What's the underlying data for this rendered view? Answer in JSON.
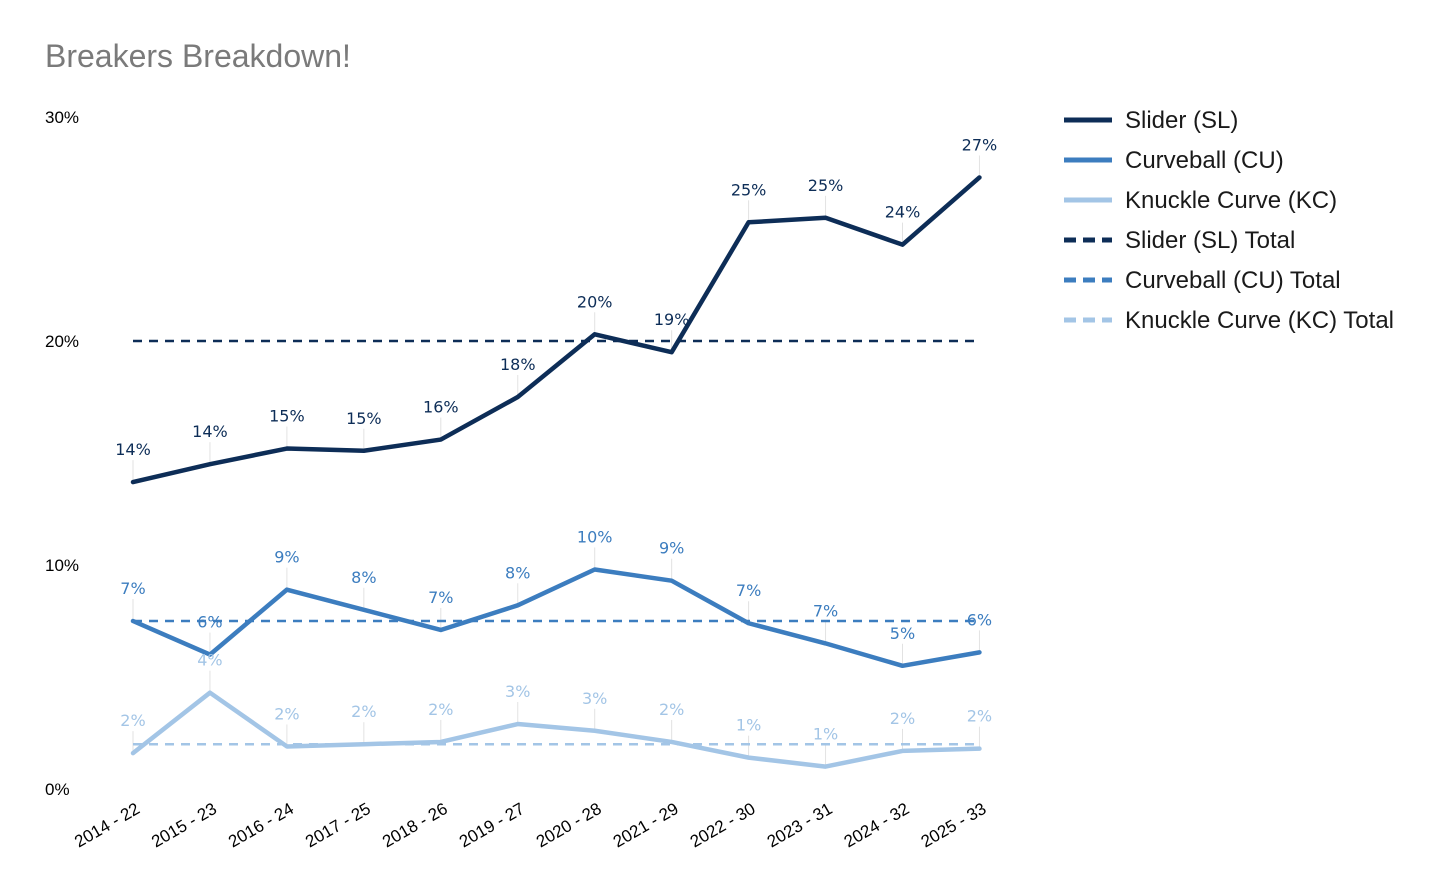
{
  "chart_data": {
    "type": "line",
    "title": "Breakers Breakdown!",
    "xlabel": "",
    "ylabel": "",
    "ylim": [
      0,
      30
    ],
    "yticks": [
      0,
      10,
      20,
      30
    ],
    "ytick_labels": [
      "0%",
      "10%",
      "20%",
      "30%"
    ],
    "grid": false,
    "legend_position": "right",
    "categories": [
      "2014 - 22",
      "2015 - 23",
      "2016 - 24",
      "2017 - 25",
      "2018 - 26",
      "2019 - 27",
      "2020 - 28",
      "2021 - 29",
      "2022 - 30",
      "2023 - 31",
      "2024 - 32",
      "2025 - 33"
    ],
    "series": [
      {
        "name": "Slider (SL)",
        "color": "#0d2d57",
        "style": "solid",
        "values": [
          13.7,
          14.5,
          15.2,
          15.1,
          15.6,
          17.5,
          20.3,
          19.5,
          25.3,
          25.5,
          24.3,
          27.3
        ],
        "labels": [
          "14%",
          "14%",
          "15%",
          "15%",
          "16%",
          "18%",
          "20%",
          "19%",
          "25%",
          "25%",
          "24%",
          "27%"
        ]
      },
      {
        "name": "Curveball (CU)",
        "color": "#3c7dbf",
        "style": "solid",
        "values": [
          7.5,
          6.0,
          8.9,
          8.0,
          7.1,
          8.2,
          9.8,
          9.3,
          7.4,
          6.5,
          5.5,
          6.1
        ],
        "labels": [
          "7%",
          "6%",
          "9%",
          "8%",
          "7%",
          "8%",
          "10%",
          "9%",
          "7%",
          "7%",
          "5%",
          "6%"
        ]
      },
      {
        "name": "Knuckle Curve (KC)",
        "color": "#a3c5e6",
        "style": "solid",
        "values": [
          1.6,
          4.3,
          1.9,
          2.0,
          2.1,
          2.9,
          2.6,
          2.1,
          1.4,
          1.0,
          1.7,
          1.8
        ],
        "labels": [
          "2%",
          "4%",
          "2%",
          "2%",
          "2%",
          "3%",
          "3%",
          "2%",
          "1%",
          "1%",
          "2%",
          "2%"
        ]
      },
      {
        "name": "Slider (SL) Total",
        "color": "#0d2d57",
        "style": "dashed",
        "values": [
          20.0,
          20.0,
          20.0,
          20.0,
          20.0,
          20.0,
          20.0,
          20.0,
          20.0,
          20.0,
          20.0,
          20.0
        ]
      },
      {
        "name": "Curveball (CU) Total",
        "color": "#3c7dbf",
        "style": "dashed",
        "values": [
          7.5,
          7.5,
          7.5,
          7.5,
          7.5,
          7.5,
          7.5,
          7.5,
          7.5,
          7.5,
          7.5,
          7.5
        ]
      },
      {
        "name": "Knuckle Curve (KC) Total",
        "color": "#a3c5e6",
        "style": "dashed",
        "values": [
          2.0,
          2.0,
          2.0,
          2.0,
          2.0,
          2.0,
          2.0,
          2.0,
          2.0,
          2.0,
          2.0,
          2.0
        ]
      }
    ]
  }
}
